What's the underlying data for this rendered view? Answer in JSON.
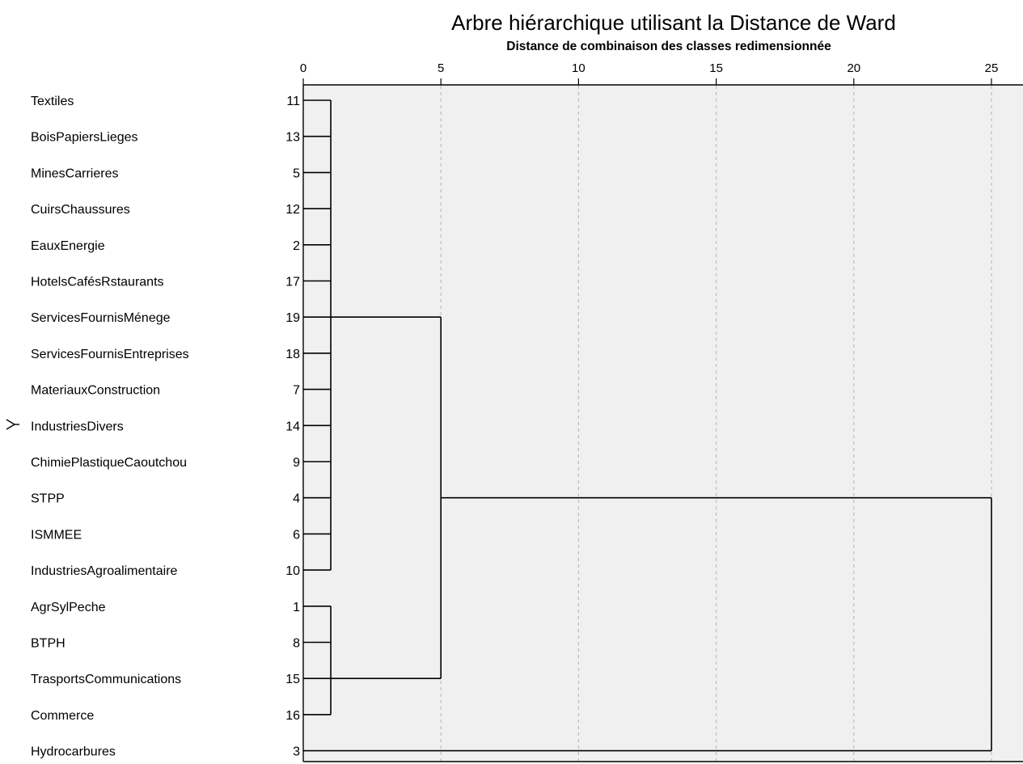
{
  "chart_data": {
    "type": "dendrogram",
    "title": "Arbre hiérarchique utilisant la Distance de Ward",
    "subtitle": "Distance de combinaison des classes redimensionnée",
    "x_ticks": [
      "0",
      "5",
      "10",
      "15",
      "20",
      "25"
    ],
    "x_range": [
      0,
      26
    ],
    "grid": "vertical-dashed",
    "variable_marker": "Y",
    "leaves": [
      {
        "label": "Textiles",
        "id": "11"
      },
      {
        "label": "BoisPapiersLieges",
        "id": "13"
      },
      {
        "label": "MinesCarrieres",
        "id": "5"
      },
      {
        "label": "CuirsChaussures",
        "id": "12"
      },
      {
        "label": "EauxEnergie",
        "id": "2"
      },
      {
        "label": "HotelsCafésRstaurants",
        "id": "17"
      },
      {
        "label": "ServicesFournisMénege",
        "id": "19"
      },
      {
        "label": "ServicesFournisEntreprises",
        "id": "18"
      },
      {
        "label": "MateriauxConstruction",
        "id": "7"
      },
      {
        "label": "IndustriesDivers",
        "id": "14"
      },
      {
        "label": "ChimiePlastiqueCaoutchou",
        "id": "9"
      },
      {
        "label": "STPP",
        "id": "4"
      },
      {
        "label": "ISMMEE",
        "id": "6"
      },
      {
        "label": "IndustriesAgroalimentaire",
        "id": "10"
      },
      {
        "label": "AgrSylPeche",
        "id": "1"
      },
      {
        "label": "BTPH",
        "id": "8"
      },
      {
        "label": "TrasportsCommunications",
        "id": "15"
      },
      {
        "label": "Commerce",
        "id": "16"
      },
      {
        "label": "Hydrocarbures",
        "id": "3"
      }
    ],
    "merges": [
      {
        "from": 0,
        "to": 13,
        "distance": 1.0,
        "attach_row": 6
      },
      {
        "from": 14,
        "to": 17,
        "distance": 1.0,
        "attach_row": 16
      },
      {
        "from": 6,
        "to": 16,
        "distance": 5.0,
        "attach_row": 11
      },
      {
        "from": 11,
        "to": 18,
        "distance": 25.0
      }
    ]
  }
}
